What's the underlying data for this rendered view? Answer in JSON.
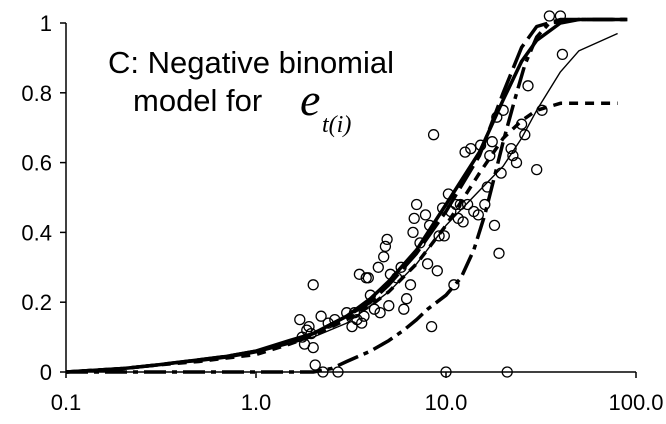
{
  "chart_data": {
    "type": "scatter",
    "title": "",
    "xlabel": "",
    "ylabel": "",
    "x_scale": "log",
    "xlim": [
      0.1,
      100
    ],
    "ylim": [
      0,
      1
    ],
    "grid": false,
    "x_ticks": [
      "0.1",
      "1.0",
      "10.0",
      "100.0"
    ],
    "y_ticks": [
      "0",
      "0.2",
      "0.4",
      "0.6",
      "0.8",
      "1"
    ],
    "annotation": {
      "line1": "C: Negative binomial",
      "line2": "model for",
      "symbol": "e",
      "subscript": "t(i)"
    },
    "series": [
      {
        "mark": "circle",
        "points": [
          [
            1.7,
            0.15
          ],
          [
            1.75,
            0.1
          ],
          [
            1.8,
            0.08
          ],
          [
            1.85,
            0.12
          ],
          [
            1.9,
            0.13
          ],
          [
            1.95,
            0.11
          ],
          [
            2.0,
            0.07
          ],
          [
            2.0,
            0.25
          ],
          [
            2.05,
            0.02
          ],
          [
            2.2,
            0.16
          ],
          [
            2.25,
            0.0
          ],
          [
            2.4,
            0.14
          ],
          [
            2.6,
            0.15
          ],
          [
            2.7,
            0.0
          ],
          [
            3.0,
            0.17
          ],
          [
            3.2,
            0.13
          ],
          [
            3.3,
            0.17
          ],
          [
            3.4,
            0.15
          ],
          [
            3.5,
            0.28
          ],
          [
            3.6,
            0.14
          ],
          [
            3.7,
            0.16
          ],
          [
            3.8,
            0.27
          ],
          [
            3.9,
            0.27
          ],
          [
            4.0,
            0.22
          ],
          [
            4.2,
            0.18
          ],
          [
            4.4,
            0.3
          ],
          [
            4.5,
            0.17
          ],
          [
            4.7,
            0.33
          ],
          [
            4.8,
            0.36
          ],
          [
            4.9,
            0.38
          ],
          [
            5.0,
            0.19
          ],
          [
            5.1,
            0.28
          ],
          [
            5.5,
            0.27
          ],
          [
            5.8,
            0.3
          ],
          [
            6.0,
            0.18
          ],
          [
            6.2,
            0.21
          ],
          [
            6.5,
            0.25
          ],
          [
            6.7,
            0.4
          ],
          [
            6.8,
            0.44
          ],
          [
            7.0,
            0.48
          ],
          [
            7.3,
            0.37
          ],
          [
            7.8,
            0.45
          ],
          [
            8.0,
            0.31
          ],
          [
            8.2,
            0.42
          ],
          [
            8.4,
            0.13
          ],
          [
            8.6,
            0.68
          ],
          [
            9.0,
            0.29
          ],
          [
            9.2,
            0.39
          ],
          [
            9.6,
            0.47
          ],
          [
            9.8,
            0.39
          ],
          [
            10.0,
            0.0
          ],
          [
            10.3,
            0.51
          ],
          [
            10.6,
            0.46
          ],
          [
            11.0,
            0.25
          ],
          [
            11.3,
            0.48
          ],
          [
            11.6,
            0.44
          ],
          [
            11.9,
            0.48
          ],
          [
            12.3,
            0.43
          ],
          [
            12.6,
            0.63
          ],
          [
            13.0,
            0.48
          ],
          [
            13.5,
            0.64
          ],
          [
            14.0,
            0.46
          ],
          [
            14.8,
            0.45
          ],
          [
            15.2,
            0.65
          ],
          [
            16.0,
            0.48
          ],
          [
            16.5,
            0.53
          ],
          [
            17.0,
            0.62
          ],
          [
            17.5,
            0.66
          ],
          [
            18.0,
            0.42
          ],
          [
            18.5,
            0.73
          ],
          [
            19.0,
            0.34
          ],
          [
            19.5,
            0.57
          ],
          [
            20.0,
            0.75
          ],
          [
            21.0,
            0.0
          ],
          [
            22.0,
            0.64
          ],
          [
            22.5,
            0.62
          ],
          [
            23.5,
            0.6
          ],
          [
            25.0,
            0.71
          ],
          [
            26.0,
            0.68
          ],
          [
            27.0,
            0.82
          ],
          [
            30.0,
            0.58
          ],
          [
            32.0,
            0.75
          ],
          [
            35.0,
            1.02
          ],
          [
            40.0,
            1.02
          ],
          [
            41.0,
            0.91
          ]
        ]
      },
      {
        "style": "thick-solid",
        "points": [
          [
            0.1,
            0.0
          ],
          [
            0.2,
            0.01
          ],
          [
            0.3,
            0.02
          ],
          [
            0.5,
            0.035
          ],
          [
            0.7,
            0.045
          ],
          [
            1.0,
            0.06
          ],
          [
            1.5,
            0.09
          ],
          [
            2.0,
            0.11
          ],
          [
            3.0,
            0.16
          ],
          [
            4.0,
            0.21
          ],
          [
            5.0,
            0.26
          ],
          [
            7.0,
            0.35
          ],
          [
            10.0,
            0.48
          ],
          [
            15.0,
            0.63
          ],
          [
            20.0,
            0.78
          ],
          [
            25.0,
            0.89
          ],
          [
            30.0,
            0.95
          ],
          [
            40.0,
            1.0
          ],
          [
            50.0,
            1.01
          ],
          [
            90.0,
            1.01
          ]
        ]
      },
      {
        "style": "thin-solid",
        "points": [
          [
            0.1,
            0.0
          ],
          [
            0.2,
            0.01
          ],
          [
            0.3,
            0.02
          ],
          [
            0.5,
            0.03
          ],
          [
            0.7,
            0.04
          ],
          [
            1.0,
            0.055
          ],
          [
            1.5,
            0.08
          ],
          [
            2.0,
            0.1
          ],
          [
            3.0,
            0.14
          ],
          [
            4.0,
            0.19
          ],
          [
            5.0,
            0.23
          ],
          [
            7.0,
            0.31
          ],
          [
            10.0,
            0.42
          ],
          [
            15.0,
            0.52
          ],
          [
            20.0,
            0.59
          ],
          [
            25.0,
            0.67
          ],
          [
            30.0,
            0.75
          ],
          [
            40.0,
            0.86
          ],
          [
            50.0,
            0.92
          ],
          [
            80.0,
            0.97
          ]
        ]
      },
      {
        "style": "long-dash",
        "points": [
          [
            0.1,
            0.0
          ],
          [
            0.2,
            0.01
          ],
          [
            0.3,
            0.02
          ],
          [
            0.5,
            0.035
          ],
          [
            0.7,
            0.045
          ],
          [
            1.0,
            0.06
          ],
          [
            1.5,
            0.085
          ],
          [
            2.0,
            0.11
          ],
          [
            3.0,
            0.16
          ],
          [
            4.0,
            0.2
          ],
          [
            5.0,
            0.25
          ],
          [
            7.0,
            0.34
          ],
          [
            10.0,
            0.46
          ],
          [
            15.0,
            0.62
          ],
          [
            20.0,
            0.8
          ],
          [
            25.0,
            0.93
          ],
          [
            30.0,
            0.99
          ],
          [
            40.0,
            1.01
          ],
          [
            90.0,
            1.01
          ]
        ]
      },
      {
        "style": "short-dash",
        "points": [
          [
            0.1,
            0.0
          ],
          [
            0.2,
            0.01
          ],
          [
            0.3,
            0.02
          ],
          [
            0.5,
            0.03
          ],
          [
            0.7,
            0.04
          ],
          [
            1.0,
            0.05
          ],
          [
            1.5,
            0.08
          ],
          [
            2.0,
            0.105
          ],
          [
            3.0,
            0.15
          ],
          [
            4.0,
            0.19
          ],
          [
            5.0,
            0.23
          ],
          [
            7.0,
            0.31
          ],
          [
            10.0,
            0.42
          ],
          [
            15.0,
            0.57
          ],
          [
            20.0,
            0.67
          ],
          [
            25.0,
            0.72
          ],
          [
            30.0,
            0.75
          ],
          [
            40.0,
            0.77
          ],
          [
            80.0,
            0.77
          ]
        ]
      },
      {
        "style": "dash-dot",
        "points": [
          [
            0.1,
            0.0
          ],
          [
            0.5,
            0.0
          ],
          [
            1.0,
            0.0
          ],
          [
            1.5,
            0.0
          ],
          [
            2.0,
            0.0
          ],
          [
            2.5,
            0.01
          ],
          [
            3.0,
            0.03
          ],
          [
            4.0,
            0.06
          ],
          [
            5.0,
            0.09
          ],
          [
            6.0,
            0.12
          ],
          [
            7.0,
            0.15
          ],
          [
            8.0,
            0.18
          ],
          [
            10.0,
            0.22
          ],
          [
            12.0,
            0.27
          ],
          [
            14.0,
            0.35
          ],
          [
            16.0,
            0.45
          ],
          [
            18.0,
            0.56
          ],
          [
            20.0,
            0.66
          ],
          [
            23.0,
            0.78
          ],
          [
            26.0,
            0.88
          ],
          [
            30.0,
            0.96
          ],
          [
            35.0,
            1.0
          ],
          [
            50.0,
            1.01
          ],
          [
            90.0,
            1.01
          ]
        ]
      }
    ]
  }
}
